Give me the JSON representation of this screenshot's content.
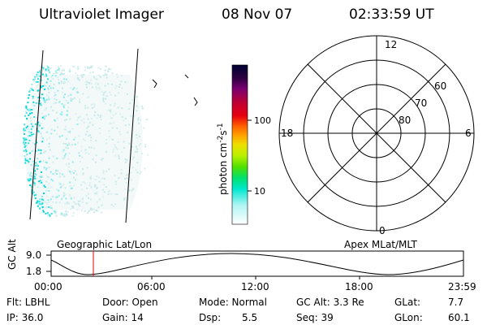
{
  "header": {
    "instrument": "Ultraviolet Imager",
    "date": "08 Nov 07",
    "time": "02:33:59 UT"
  },
  "colorbar": {
    "unit_label": "photon cm",
    "unit_exp_1": "-2",
    "unit_mid": "s",
    "unit_exp_2": "-1",
    "scale": "log",
    "tick_labels": [
      "100",
      "10"
    ],
    "colors": [
      "#000030",
      "#2a0040",
      "#7a0070",
      "#c00030",
      "#e80010",
      "#ff5a00",
      "#ffa000",
      "#f0e000",
      "#b8f000",
      "#50e000",
      "#00e070",
      "#00e8d0",
      "#b0f4f4",
      "#ffffff"
    ]
  },
  "polar_plot": {
    "hour_labels": [
      "12",
      "18",
      "6",
      "0"
    ],
    "lat_labels": [
      "60",
      "70",
      "80"
    ]
  },
  "timeline": {
    "left_label": "Geographic Lat/Lon",
    "right_label": "Apex MLat/MLT",
    "axis_title": "GC Alt",
    "y_ticks": [
      "9.0",
      "1.8"
    ],
    "x_ticks": [
      "00:00",
      "06:00",
      "12:00",
      "18:00",
      "23:59"
    ],
    "marker_color": "#e00000"
  },
  "info": {
    "flt": "Flt: LBHL",
    "ip": "IP: 36.0",
    "door": "Door: Open",
    "gain": "Gain: 14",
    "mode": "Mode: Normal",
    "dsp_label": "Dsp:",
    "dsp_value": "5.5",
    "gcalt": "GC Alt: 3.3 Re",
    "seq": "Seq: 39",
    "glat_label": "GLat:",
    "glat_value": "7.7",
    "glon_label": "GLon:",
    "glon_value": "60.1"
  }
}
